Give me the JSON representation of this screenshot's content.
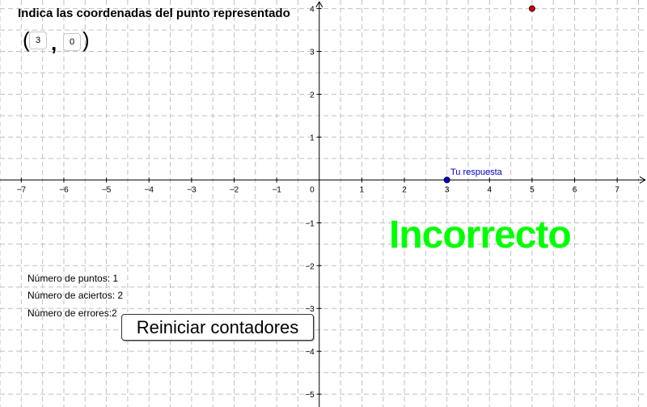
{
  "instruction": "Indica las coordenadas del punto representado",
  "inputs": {
    "open_paren": "(",
    "x_value": "3",
    "comma": ",",
    "y_value": "0",
    "close_paren": ")"
  },
  "stats": {
    "points": "Número de puntos: 1",
    "correct": "Número de aciertos: 2",
    "errors": "Número de errores:2"
  },
  "reset_button": "Reiniciar contadores",
  "result": "Incorrecto",
  "answer_label": "Tu respuesta",
  "graph": {
    "x_range": [
      -7.5,
      7.7
    ],
    "y_range": [
      -5.3,
      4.2
    ],
    "x_ticks": [
      -7,
      -6,
      -5,
      -4,
      -3,
      -2,
      -1,
      1,
      2,
      3,
      4,
      5,
      6,
      7
    ],
    "y_ticks": [
      -5,
      -4,
      -3,
      -2,
      -1,
      1,
      2,
      3,
      4
    ],
    "origin_label": "0",
    "grid": true,
    "target_point": {
      "x": 5,
      "y": 4,
      "color": "#cc0000"
    },
    "answer_point": {
      "x": 3,
      "y": 0,
      "color": "#0000cc"
    }
  },
  "colors": {
    "result": "#00ff00",
    "answer": "#0000cc",
    "target": "#cc0000",
    "grid": "#c0c0c0"
  }
}
